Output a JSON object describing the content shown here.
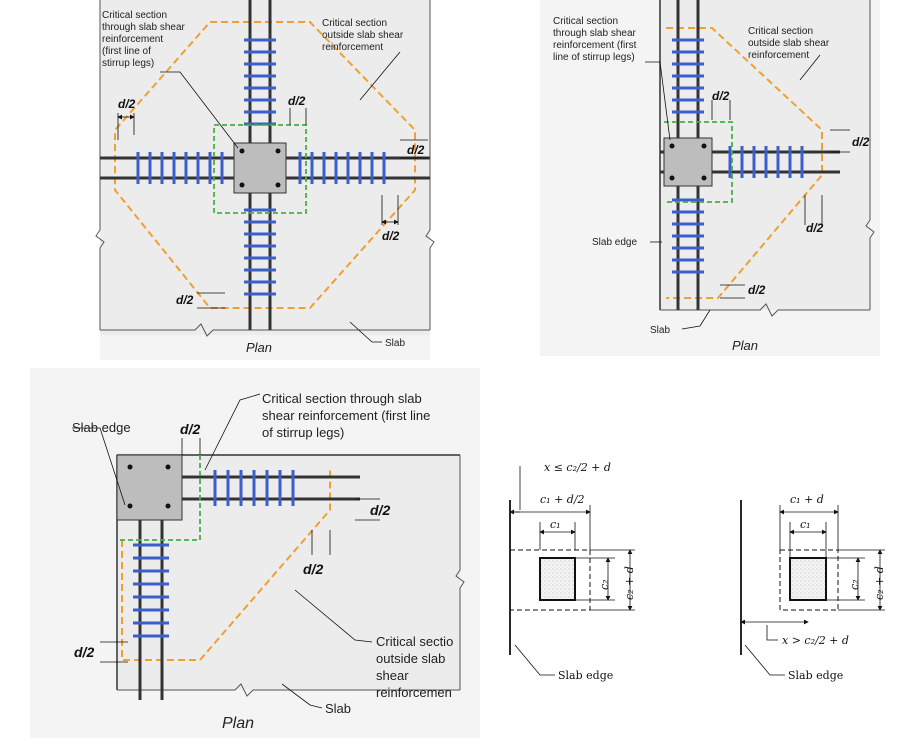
{
  "panel_interior": {
    "critical_inside": [
      "Critical section",
      "through slab shear",
      "reinforcement",
      "(first line of",
      "stirrup legs)"
    ],
    "critical_outside": [
      "Critical section",
      "outside slab shear",
      "reinforcement"
    ],
    "d2": "d/2",
    "slab": "Slab",
    "plan": "Plan"
  },
  "panel_edge": {
    "critical_inside": [
      "Critical section",
      "through slab shear",
      "reinforcement (first",
      "line of stirrup legs)"
    ],
    "critical_outside": [
      "Critical section",
      "outside slab shear",
      "reinforcement"
    ],
    "d2": "d/2",
    "slab_edge": "Slab edge",
    "slab": "Slab",
    "plan": "Plan"
  },
  "panel_corner": {
    "slab_edge": "Slab edge",
    "d2": "d/2",
    "critical_inside": [
      "Critical section through slab",
      "shear reinforcement (first line",
      "of stirrup legs)"
    ],
    "critical_outside": [
      "Critical sectio",
      "outside slab",
      "shear",
      "reinforcemen"
    ],
    "slab": "Slab",
    "plan": "Plan"
  },
  "panel_small_left": {
    "x_label": "x ≤ c₂/2 + d",
    "c1_d2": "c₁ + d/2",
    "c1": "c₁",
    "c2": "c₂",
    "c2_d": "c₂ + d",
    "slab_edge": "Slab edge"
  },
  "panel_small_right": {
    "c1_d": "c₁ + d",
    "c1": "c₁",
    "c2": "c₂",
    "c2_d": "c₂ + d",
    "x_label": "x > c₂/2 + d",
    "slab_edge": "Slab edge"
  },
  "colors": {
    "slab_fill": "#ececec",
    "column_fill": "#bdbdbd",
    "stirrup": "#3a5fcd",
    "critical_outside": "#f0a030",
    "critical_inside": "#44b044",
    "bar": "#333333"
  }
}
